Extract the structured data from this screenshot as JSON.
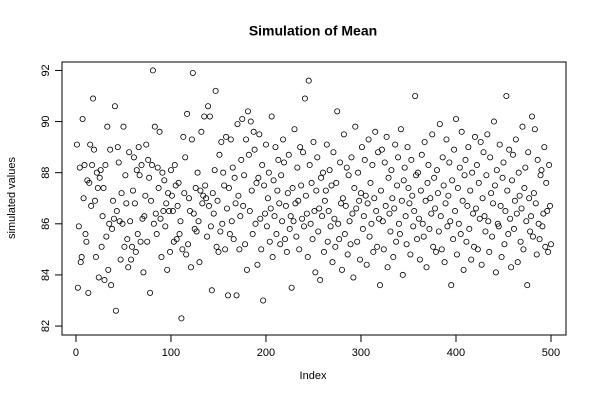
{
  "chart_data": {
    "type": "scatter",
    "title": "Simulation of Mean",
    "x_label": "Index",
    "y_label": "simulated values",
    "color": "#000000",
    "xlim": [
      -14.7,
      515.8
    ],
    "ylim": [
      81.65,
      92.33
    ],
    "xticks": [
      0,
      100,
      200,
      300,
      400,
      500
    ],
    "yticks": [
      82,
      84,
      86,
      88,
      90,
      92
    ],
    "x": [
      1,
      2,
      3,
      4,
      5,
      6,
      7,
      8,
      9,
      10,
      11,
      12,
      13,
      14,
      15,
      16,
      17,
      18,
      19,
      20,
      21,
      22,
      23,
      24,
      25,
      26,
      27,
      28,
      29,
      30,
      31,
      32,
      33,
      34,
      35,
      36,
      37,
      38,
      39,
      40,
      41,
      42,
      43,
      44,
      45,
      46,
      47,
      48,
      49,
      50,
      51,
      52,
      53,
      54,
      55,
      56,
      57,
      58,
      59,
      60,
      61,
      62,
      63,
      64,
      65,
      66,
      67,
      68,
      69,
      70,
      71,
      72,
      73,
      74,
      75,
      76,
      77,
      78,
      79,
      80,
      81,
      82,
      83,
      84,
      85,
      86,
      87,
      88,
      89,
      90,
      91,
      92,
      93,
      94,
      95,
      96,
      97,
      98,
      99,
      100,
      101,
      102,
      103,
      104,
      105,
      106,
      107,
      108,
      109,
      110,
      111,
      112,
      113,
      114,
      115,
      116,
      117,
      118,
      119,
      120,
      121,
      122,
      123,
      124,
      125,
      126,
      127,
      128,
      129,
      130,
      131,
      132,
      133,
      134,
      135,
      136,
      137,
      138,
      139,
      140,
      141,
      142,
      143,
      144,
      145,
      146,
      147,
      148,
      149,
      150,
      151,
      152,
      153,
      154,
      155,
      156,
      157,
      158,
      159,
      160,
      161,
      162,
      163,
      164,
      165,
      166,
      167,
      168,
      169,
      170,
      171,
      172,
      173,
      174,
      175,
      176,
      177,
      178,
      179,
      180,
      181,
      182,
      183,
      184,
      185,
      186,
      187,
      188,
      189,
      190,
      191,
      192,
      193,
      194,
      195,
      196,
      197,
      198,
      199,
      200,
      201,
      202,
      203,
      204,
      205,
      206,
      207,
      208,
      209,
      210,
      211,
      212,
      213,
      214,
      215,
      216,
      217,
      218,
      219,
      220,
      221,
      222,
      223,
      224,
      225,
      226,
      227,
      228,
      229,
      230,
      231,
      232,
      233,
      234,
      235,
      236,
      237,
      238,
      239,
      240,
      241,
      242,
      243,
      244,
      245,
      246,
      247,
      248,
      249,
      250,
      251,
      252,
      253,
      254,
      255,
      256,
      257,
      258,
      259,
      260,
      261,
      262,
      263,
      264,
      265,
      266,
      267,
      268,
      269,
      270,
      271,
      272,
      273,
      274,
      275,
      276,
      277,
      278,
      279,
      280,
      281,
      282,
      283,
      284,
      285,
      286,
      287,
      288,
      289,
      290,
      291,
      292,
      293,
      294,
      295,
      296,
      297,
      298,
      299,
      300,
      301,
      302,
      303,
      304,
      305,
      306,
      307,
      308,
      309,
      310,
      311,
      312,
      313,
      314,
      315,
      316,
      317,
      318,
      319,
      320,
      321,
      322,
      323,
      324,
      325,
      326,
      327,
      328,
      329,
      330,
      331,
      332,
      333,
      334,
      335,
      336,
      337,
      338,
      339,
      340,
      341,
      342,
      343,
      344,
      345,
      346,
      347,
      348,
      349,
      350,
      351,
      352,
      353,
      354,
      355,
      356,
      357,
      358,
      359,
      360,
      361,
      362,
      363,
      364,
      365,
      366,
      367,
      368,
      369,
      370,
      371,
      372,
      373,
      374,
      375,
      376,
      377,
      378,
      379,
      380,
      381,
      382,
      383,
      384,
      385,
      386,
      387,
      388,
      389,
      390,
      391,
      392,
      393,
      394,
      395,
      396,
      397,
      398,
      399,
      400,
      401,
      402,
      403,
      404,
      405,
      406,
      407,
      408,
      409,
      410,
      411,
      412,
      413,
      414,
      415,
      416,
      417,
      418,
      419,
      420,
      421,
      422,
      423,
      424,
      425,
      426,
      427,
      428,
      429,
      430,
      431,
      432,
      433,
      434,
      435,
      436,
      437,
      438,
      439,
      440,
      441,
      442,
      443,
      444,
      445,
      446,
      447,
      448,
      449,
      450,
      451,
      452,
      453,
      454,
      455,
      456,
      457,
      458,
      459,
      460,
      461,
      462,
      463,
      464,
      465,
      466,
      467,
      468,
      469,
      470,
      471,
      472,
      473,
      474,
      475,
      476,
      477,
      478,
      479,
      480,
      481,
      482,
      483,
      484,
      485,
      486,
      487,
      488,
      489,
      490,
      491,
      492,
      493,
      494,
      495,
      496,
      497,
      498,
      499,
      500
    ],
    "values": [
      89.1,
      83.5,
      85.9,
      88.2,
      84.5,
      84.7,
      90.1,
      87.0,
      88.3,
      85.6,
      85.3,
      87.7,
      83.3,
      87.6,
      89.1,
      86.7,
      88.3,
      90.9,
      88.9,
      86.9,
      84.7,
      88.0,
      87.4,
      83.9,
      87.8,
      88.1,
      85.1,
      86.3,
      87.4,
      83.8,
      88.3,
      85.5,
      89.8,
      84.2,
      86.0,
      88.9,
      83.6,
      85.8,
      86.9,
      86.2,
      90.6,
      82.6,
      86.5,
      89.0,
      88.4,
      86.1,
      84.6,
      87.2,
      86.0,
      89.8,
      85.1,
      87.9,
      86.8,
      85.4,
      84.3,
      88.8,
      86.1,
      84.6,
      85.1,
      87.3,
      88.6,
      86.8,
      84.9,
      88.1,
      85.6,
      89.0,
      87.9,
      85.3,
      88.3,
      86.2,
      84.1,
      86.3,
      87.1,
      89.1,
      85.3,
      88.5,
      87.8,
      83.3,
      86.9,
      88.3,
      92.0,
      86.0,
      89.8,
      86.4,
      85.6,
      88.2,
      87.4,
      89.6,
      86.2,
      84.7,
      88.0,
      86.5,
      87.7,
      85.9,
      86.8,
      84.2,
      87.2,
      86.5,
      84.9,
      88.1,
      87.1,
      86.5,
      85.3,
      88.3,
      87.5,
      85.4,
      86.7,
      87.6,
      85.6,
      86.1,
      82.3,
      85.0,
      89.4,
      87.2,
      88.6,
      84.8,
      90.3,
      85.2,
      87.0,
      86.5,
      84.3,
      89.3,
      91.9,
      86.4,
      85.8,
      87.4,
      85.7,
      88.0,
      86.1,
      84.5,
      87.3,
      89.6,
      86.8,
      87.1,
      90.2,
      87.5,
      87.0,
      85.5,
      90.6,
      86.7,
      90.2,
      85.9,
      83.4,
      87.2,
      86.4,
      88.1,
      91.2,
      85.1,
      86.9,
      84.9,
      88.7,
      85.7,
      89.2,
      86.0,
      88.0,
      87.5,
      85.0,
      89.4,
      86.6,
      83.2,
      87.4,
      85.6,
      89.3,
      86.1,
      88.2,
      85.4,
      87.8,
      86.8,
      83.2,
      89.9,
      87.1,
      85.0,
      86.3,
      88.5,
      90.1,
      86.7,
      87.9,
      85.2,
      89.3,
      84.2,
      90.4,
      88.7,
      86.5,
      90.0,
      87.3,
      85.6,
      89.6,
      88.9,
      86.0,
      87.6,
      84.4,
      87.8,
      89.5,
      86.2,
      85.0,
      88.3,
      83.0,
      87.5,
      86.4,
      89.1,
      85.9,
      87.0,
      88.0,
      85.3,
      86.6,
      90.2,
      84.7,
      87.7,
      86.3,
      89.0,
      85.6,
      87.3,
      88.5,
      86.8,
      85.2,
      87.9,
      86.1,
      89.3,
      88.4,
      85.4,
      86.7,
      84.9,
      87.2,
      88.7,
      85.8,
      86.3,
      83.5,
      87.4,
      86.1,
      89.7,
      86.8,
      85.5,
      88.2,
      86.9,
      85.0,
      89.0,
      87.5,
      86.2,
      88.8,
      85.9,
      90.9,
      87.1,
      86.4,
      84.7,
      91.6,
      88.3,
      86.0,
      87.6,
      85.4,
      89.2,
      86.5,
      84.1,
      87.3,
      88.6,
      85.7,
      86.6,
      83.8,
      87.8,
      86.3,
      88.0,
      84.9,
      86.9,
      87.3,
      89.1,
      85.3,
      86.5,
      88.1,
      85.9,
      87.5,
      84.5,
      88.8,
      86.2,
      85.1,
      87.6,
      90.4,
      86.0,
      85.4,
      88.4,
      86.8,
      84.2,
      87.0,
      89.5,
      85.6,
      86.7,
      88.2,
      84.8,
      87.9,
      86.1,
      85.2,
      88.6,
      86.4,
      83.9,
      87.4,
      89.8,
      86.6,
      85.3,
      88.0,
      86.9,
      84.6,
      87.2,
      89.0,
      85.8,
      86.3,
      88.5,
      87.1,
      84.4,
      86.8,
      89.3,
      85.5,
      87.6,
      86.0,
      88.3,
      84.9,
      87.0,
      89.6,
      86.5,
      85.1,
      88.8,
      86.2,
      83.6,
      87.3,
      88.9,
      86.1,
      85.0,
      88.4,
      86.7,
      89.4,
      84.3,
      87.8,
      86.4,
      85.7,
      88.1,
      87.0,
      84.7,
      86.6,
      89.1,
      85.3,
      87.5,
      88.6,
      86.0,
      85.6,
      89.7,
      86.9,
      84.0,
      87.7,
      88.2,
      86.3,
      85.2,
      89.0,
      87.4,
      86.8,
      84.8,
      88.5,
      87.1,
      85.9,
      86.5,
      91.0,
      87.9,
      85.4,
      88.0,
      86.2,
      84.6,
      87.3,
      88.7,
      86.0,
      85.5,
      89.2,
      86.9,
      84.3,
      87.6,
      88.3,
      85.8,
      87.0,
      86.4,
      89.5,
      85.1,
      87.8,
      86.6,
      84.9,
      88.1,
      87.2,
      85.7,
      89.9,
      86.3,
      85.0,
      88.6,
      87.5,
      84.5,
      86.8,
      89.3,
      85.9,
      87.1,
      88.4,
      86.1,
      83.6,
      87.7,
      85.4,
      88.9,
      86.5,
      90.1,
      84.8,
      87.4,
      86.0,
      88.2,
      85.6,
      89.6,
      86.9,
      84.2,
      87.9,
      88.5,
      85.3,
      86.7,
      89.0,
      85.8,
      87.3,
      84.6,
      88.0,
      86.4,
      85.1,
      89.4,
      86.6,
      88.3,
      85.0,
      87.6,
      86.2,
      89.2,
      84.4,
      87.0,
      88.8,
      86.3,
      85.7,
      87.9,
      89.5,
      86.1,
      84.9,
      88.6,
      87.2,
      85.5,
      86.8,
      90.0,
      87.5,
      84.1,
      88.1,
      86.0,
      85.9,
      89.1,
      86.7,
      84.7,
      87.8,
      88.4,
      85.2,
      86.5,
      91.0,
      87.3,
      85.6,
      88.9,
      86.2,
      84.3,
      87.7,
      88.7,
      85.8,
      86.9,
      89.3,
      86.4,
      84.5,
      88.0,
      87.1,
      85.3,
      86.6,
      89.8,
      85.0,
      87.4,
      88.2,
      86.1,
      83.6,
      88.8,
      87.0,
      85.7,
      86.3,
      90.2,
      85.5,
      87.2,
      89.7,
      86.8,
      84.8,
      88.5,
      86.0,
      85.4,
      87.9,
      88.1,
      85.9,
      86.4,
      89.0,
      85.1,
      87.6,
      86.5,
      84.9,
      88.3,
      86.7,
      85.2
    ]
  }
}
